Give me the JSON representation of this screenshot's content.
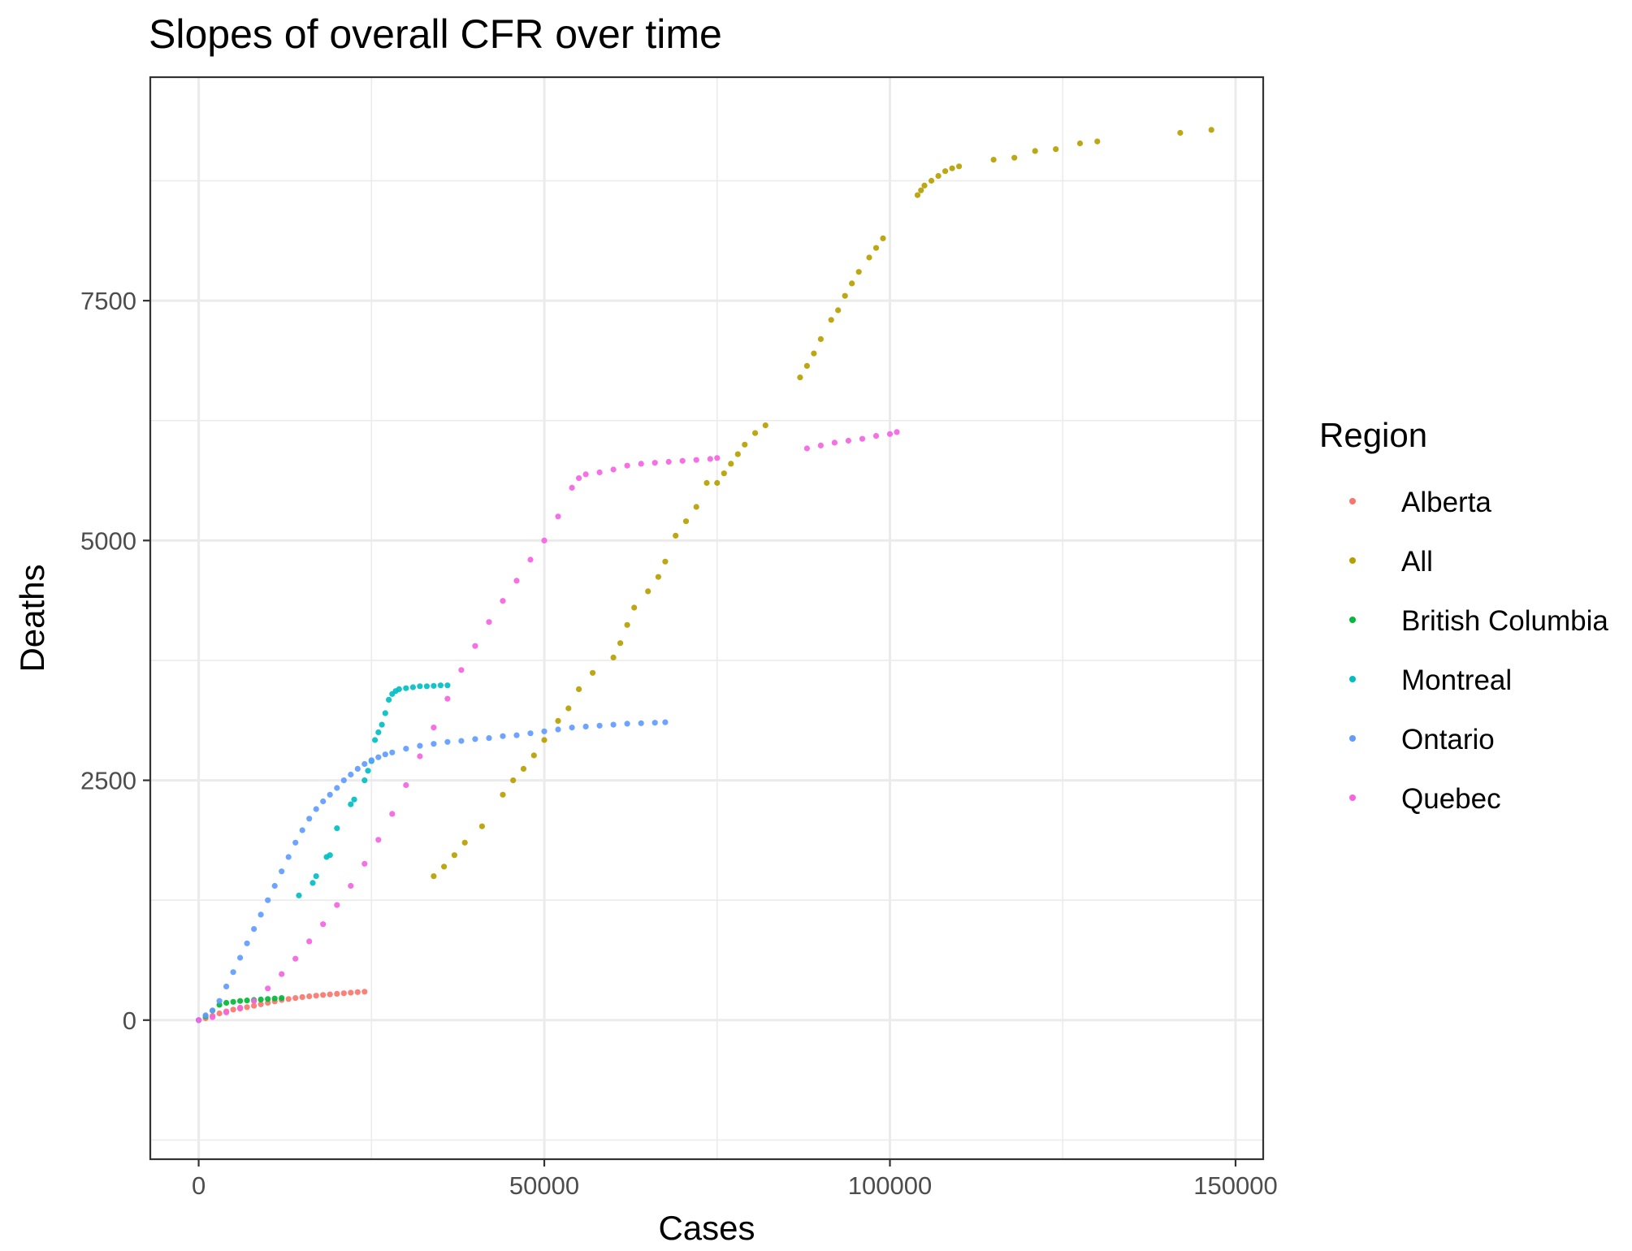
{
  "chart_data": {
    "type": "scatter",
    "title": "Slopes of overall CFR over time",
    "xlabel": "Cases",
    "ylabel": "Deaths",
    "xlim": [
      -7000,
      154000
    ],
    "ylim": [
      -1450,
      9830
    ],
    "x_ticks": [
      0,
      50000,
      100000,
      150000
    ],
    "y_ticks": [
      0,
      2500,
      5000,
      7500
    ],
    "x_tick_labels": [
      "0",
      "50000",
      "100000",
      "150000"
    ],
    "y_tick_labels": [
      "0",
      "2500",
      "5000",
      "7500"
    ],
    "grid": true,
    "legend": {
      "title": "Region",
      "position": "right"
    },
    "series": [
      {
        "name": "Alberta",
        "color": "#F8766D",
        "points": [
          [
            0,
            0
          ],
          [
            1000,
            20
          ],
          [
            2000,
            45
          ],
          [
            3000,
            70
          ],
          [
            4000,
            90
          ],
          [
            5000,
            110
          ],
          [
            6000,
            120
          ],
          [
            7000,
            135
          ],
          [
            8000,
            150
          ],
          [
            9000,
            165
          ],
          [
            10000,
            180
          ],
          [
            11000,
            195
          ],
          [
            12000,
            210
          ],
          [
            13000,
            220
          ],
          [
            14000,
            230
          ],
          [
            15000,
            240
          ],
          [
            16000,
            248
          ],
          [
            17000,
            255
          ],
          [
            18000,
            262
          ],
          [
            19000,
            268
          ],
          [
            20000,
            274
          ],
          [
            21000,
            280
          ],
          [
            22000,
            286
          ],
          [
            23000,
            292
          ],
          [
            24000,
            296
          ]
        ]
      },
      {
        "name": "All",
        "color": "#B79F00",
        "points": [
          [
            34000,
            1500
          ],
          [
            35500,
            1600
          ],
          [
            37000,
            1720
          ],
          [
            38500,
            1850
          ],
          [
            41000,
            2020
          ],
          [
            44000,
            2350
          ],
          [
            45500,
            2500
          ],
          [
            47000,
            2620
          ],
          [
            48500,
            2760
          ],
          [
            50000,
            2920
          ],
          [
            52000,
            3120
          ],
          [
            53500,
            3250
          ],
          [
            55000,
            3450
          ],
          [
            57000,
            3620
          ],
          [
            60000,
            3780
          ],
          [
            61000,
            3930
          ],
          [
            62000,
            4120
          ],
          [
            63000,
            4300
          ],
          [
            65000,
            4470
          ],
          [
            66500,
            4620
          ],
          [
            67500,
            4780
          ],
          [
            69000,
            5050
          ],
          [
            70500,
            5200
          ],
          [
            72000,
            5350
          ],
          [
            73500,
            5600
          ],
          [
            75000,
            5600
          ],
          [
            76000,
            5700
          ],
          [
            77000,
            5800
          ],
          [
            78000,
            5900
          ],
          [
            79000,
            6000
          ],
          [
            80500,
            6120
          ],
          [
            82000,
            6200
          ],
          [
            87000,
            6700
          ],
          [
            88000,
            6820
          ],
          [
            89000,
            6950
          ],
          [
            90000,
            7100
          ],
          [
            91500,
            7300
          ],
          [
            92500,
            7400
          ],
          [
            93500,
            7550
          ],
          [
            94500,
            7680
          ],
          [
            95500,
            7800
          ],
          [
            97000,
            7950
          ],
          [
            98000,
            8050
          ],
          [
            99000,
            8150
          ],
          [
            104000,
            8600
          ],
          [
            104500,
            8650
          ],
          [
            105000,
            8700
          ],
          [
            106000,
            8750
          ],
          [
            107000,
            8800
          ],
          [
            108000,
            8850
          ],
          [
            109000,
            8880
          ],
          [
            110000,
            8900
          ],
          [
            115000,
            8970
          ],
          [
            118000,
            8990
          ],
          [
            121000,
            9060
          ],
          [
            124000,
            9080
          ],
          [
            127500,
            9140
          ],
          [
            130000,
            9160
          ],
          [
            142000,
            9250
          ],
          [
            146500,
            9280
          ]
        ]
      },
      {
        "name": "British Columbia",
        "color": "#00BA38",
        "points": [
          [
            0,
            0
          ],
          [
            1000,
            40
          ],
          [
            2000,
            100
          ],
          [
            3000,
            160
          ],
          [
            4000,
            180
          ],
          [
            5000,
            190
          ],
          [
            6000,
            200
          ],
          [
            7000,
            205
          ],
          [
            8000,
            210
          ],
          [
            9000,
            215
          ],
          [
            10000,
            220
          ],
          [
            11000,
            225
          ],
          [
            12000,
            230
          ]
        ]
      },
      {
        "name": "Montreal",
        "color": "#00BFC4",
        "points": [
          [
            14500,
            1300
          ],
          [
            16500,
            1430
          ],
          [
            17000,
            1500
          ],
          [
            18500,
            1700
          ],
          [
            19000,
            1720
          ],
          [
            20000,
            2000
          ],
          [
            22000,
            2250
          ],
          [
            22500,
            2300
          ],
          [
            24000,
            2500
          ],
          [
            24500,
            2600
          ],
          [
            25000,
            2700
          ],
          [
            25500,
            2920
          ],
          [
            26000,
            3000
          ],
          [
            26500,
            3080
          ],
          [
            27000,
            3200
          ],
          [
            27500,
            3340
          ],
          [
            28000,
            3400
          ],
          [
            28500,
            3430
          ],
          [
            29000,
            3450
          ],
          [
            30000,
            3460
          ],
          [
            31000,
            3470
          ],
          [
            32000,
            3480
          ],
          [
            33000,
            3480
          ],
          [
            34000,
            3485
          ],
          [
            35000,
            3490
          ],
          [
            36000,
            3490
          ]
        ]
      },
      {
        "name": "Ontario",
        "color": "#619CFF",
        "points": [
          [
            0,
            0
          ],
          [
            1000,
            50
          ],
          [
            2000,
            100
          ],
          [
            3000,
            200
          ],
          [
            4000,
            350
          ],
          [
            5000,
            500
          ],
          [
            6000,
            650
          ],
          [
            7000,
            800
          ],
          [
            8000,
            950
          ],
          [
            9000,
            1100
          ],
          [
            10000,
            1250
          ],
          [
            11000,
            1400
          ],
          [
            12000,
            1550
          ],
          [
            13000,
            1700
          ],
          [
            14000,
            1850
          ],
          [
            15000,
            1980
          ],
          [
            16000,
            2100
          ],
          [
            17000,
            2200
          ],
          [
            18000,
            2280
          ],
          [
            19000,
            2350
          ],
          [
            20000,
            2420
          ],
          [
            21000,
            2500
          ],
          [
            22000,
            2560
          ],
          [
            23000,
            2620
          ],
          [
            24000,
            2670
          ],
          [
            25000,
            2710
          ],
          [
            26000,
            2740
          ],
          [
            27000,
            2770
          ],
          [
            28000,
            2790
          ],
          [
            30000,
            2830
          ],
          [
            32000,
            2860
          ],
          [
            34000,
            2880
          ],
          [
            36000,
            2900
          ],
          [
            38000,
            2910
          ],
          [
            40000,
            2930
          ],
          [
            42000,
            2940
          ],
          [
            44000,
            2960
          ],
          [
            46000,
            2970
          ],
          [
            48000,
            2990
          ],
          [
            50000,
            3010
          ],
          [
            52000,
            3030
          ],
          [
            54000,
            3050
          ],
          [
            56000,
            3060
          ],
          [
            58000,
            3070
          ],
          [
            60000,
            3080
          ],
          [
            62000,
            3090
          ],
          [
            64000,
            3095
          ],
          [
            66000,
            3100
          ],
          [
            67500,
            3105
          ]
        ]
      },
      {
        "name": "Quebec",
        "color": "#F564E3",
        "points": [
          [
            0,
            0
          ],
          [
            2000,
            30
          ],
          [
            4000,
            80
          ],
          [
            6000,
            130
          ],
          [
            8000,
            200
          ],
          [
            10000,
            330
          ],
          [
            12000,
            480
          ],
          [
            14000,
            640
          ],
          [
            16000,
            820
          ],
          [
            18000,
            1000
          ],
          [
            20000,
            1200
          ],
          [
            22000,
            1400
          ],
          [
            24000,
            1630
          ],
          [
            26000,
            1880
          ],
          [
            28000,
            2150
          ],
          [
            30000,
            2450
          ],
          [
            32000,
            2750
          ],
          [
            34000,
            3050
          ],
          [
            36000,
            3350
          ],
          [
            38000,
            3650
          ],
          [
            40000,
            3900
          ],
          [
            42000,
            4150
          ],
          [
            44000,
            4370
          ],
          [
            46000,
            4580
          ],
          [
            48000,
            4800
          ],
          [
            50000,
            5000
          ],
          [
            52000,
            5250
          ],
          [
            54000,
            5550
          ],
          [
            55000,
            5650
          ],
          [
            56000,
            5690
          ],
          [
            58000,
            5710
          ],
          [
            60000,
            5740
          ],
          [
            62000,
            5780
          ],
          [
            64000,
            5800
          ],
          [
            66000,
            5810
          ],
          [
            68000,
            5820
          ],
          [
            70000,
            5830
          ],
          [
            72000,
            5840
          ],
          [
            74000,
            5850
          ],
          [
            75000,
            5860
          ],
          [
            88000,
            5960
          ],
          [
            90000,
            5990
          ],
          [
            92000,
            6020
          ],
          [
            94000,
            6040
          ],
          [
            96000,
            6060
          ],
          [
            98000,
            6090
          ],
          [
            100000,
            6110
          ],
          [
            101000,
            6130
          ]
        ]
      }
    ]
  }
}
